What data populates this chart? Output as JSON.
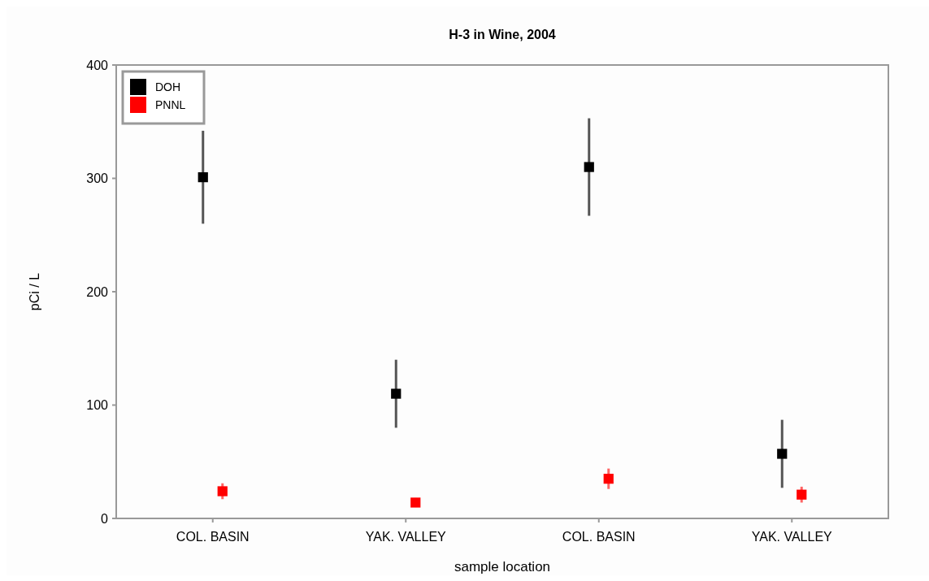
{
  "chart_data": {
    "type": "scatter",
    "title": "H-3 in Wine, 2004",
    "xlabel": "sample location",
    "ylabel": "pCi / L",
    "categories": [
      "COL. BASIN",
      "YAK. VALLEY",
      "COL. BASIN",
      "YAK. VALLEY"
    ],
    "series": [
      {
        "name": "DOH",
        "color": "#000000",
        "values": [
          301,
          110,
          310,
          57
        ],
        "errors": [
          41,
          30,
          43,
          30
        ]
      },
      {
        "name": "PNNL",
        "color": "#ff0000",
        "values": [
          24,
          14,
          35,
          21
        ],
        "errors": [
          7,
          4,
          9,
          7
        ]
      }
    ],
    "ylim": [
      0,
      400
    ],
    "yticks": [
      0,
      100,
      200,
      300,
      400
    ],
    "grid": false,
    "legend": "top left",
    "marker": "square"
  }
}
